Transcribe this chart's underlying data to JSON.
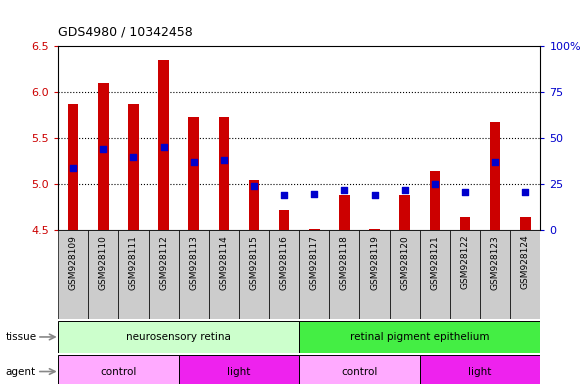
{
  "title": "GDS4980 / 10342458",
  "samples": [
    "GSM928109",
    "GSM928110",
    "GSM928111",
    "GSM928112",
    "GSM928113",
    "GSM928114",
    "GSM928115",
    "GSM928116",
    "GSM928117",
    "GSM928118",
    "GSM928119",
    "GSM928120",
    "GSM928121",
    "GSM928122",
    "GSM928123",
    "GSM928124"
  ],
  "transformed_count": [
    5.87,
    6.1,
    5.87,
    6.35,
    5.73,
    5.73,
    5.05,
    4.72,
    4.52,
    4.88,
    4.52,
    4.88,
    5.14,
    4.65,
    5.68,
    4.65
  ],
  "percentile_rank": [
    34,
    44,
    40,
    45,
    37,
    38,
    24,
    19,
    20,
    22,
    19,
    22,
    25,
    21,
    37,
    21
  ],
  "baseline": 4.5,
  "ylim_left": [
    4.5,
    6.5
  ],
  "ylim_right": [
    0,
    100
  ],
  "yticks_left": [
    4.5,
    5.0,
    5.5,
    6.0,
    6.5
  ],
  "yticks_right": [
    0,
    25,
    50,
    75,
    100
  ],
  "ytick_labels_right": [
    "0",
    "25",
    "50",
    "75",
    "100%"
  ],
  "bar_color": "#cc0000",
  "dot_color": "#0000cc",
  "bg_color": "#ffffff",
  "plot_bg_color": "#ffffff",
  "tissue_groups": [
    {
      "label": "neurosensory retina",
      "start": 0,
      "end": 7,
      "color": "#ccffcc"
    },
    {
      "label": "retinal pigment epithelium",
      "start": 8,
      "end": 15,
      "color": "#44ee44"
    }
  ],
  "agent_groups": [
    {
      "label": "control",
      "start": 0,
      "end": 3,
      "color": "#ffaaff"
    },
    {
      "label": "light",
      "start": 4,
      "end": 7,
      "color": "#ee22ee"
    },
    {
      "label": "control",
      "start": 8,
      "end": 11,
      "color": "#ffaaff"
    },
    {
      "label": "light",
      "start": 12,
      "end": 15,
      "color": "#ee22ee"
    }
  ],
  "left_axis_color": "#cc0000",
  "right_axis_color": "#0000cc",
  "xticklabel_bg": "#dddddd",
  "border_color": "#000000"
}
